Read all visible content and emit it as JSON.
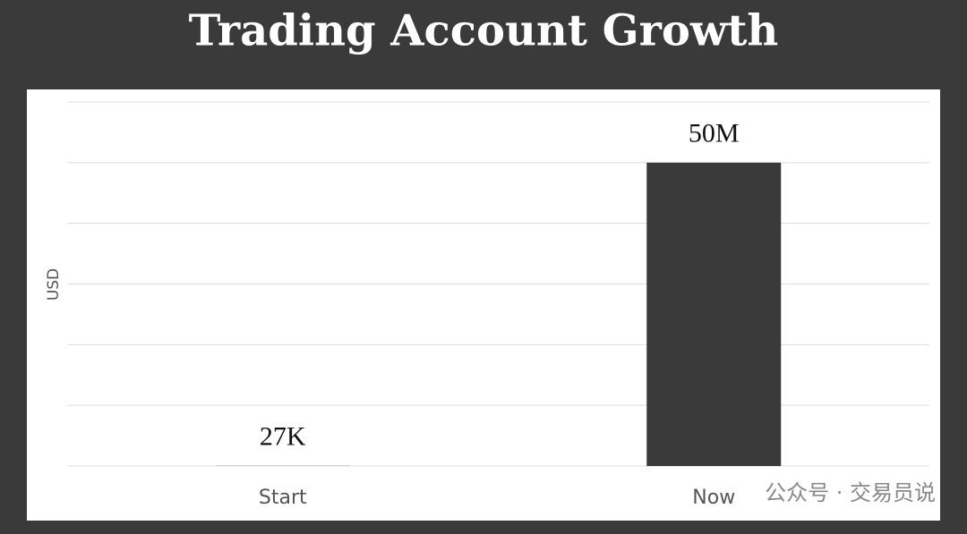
{
  "chart_data": {
    "type": "bar",
    "title": "Trading Account Growth",
    "y_label": "USD",
    "categories": [
      "Start",
      "Now"
    ],
    "values": [
      27000,
      50000000
    ],
    "value_labels": [
      "27K",
      "50M"
    ],
    "color": "#3a3a3a",
    "ylim": [
      0,
      60000000
    ],
    "yticks": [
      0,
      10000000,
      20000000,
      30000000,
      40000000,
      50000000,
      60000000
    ],
    "grid": true,
    "watermark": "公众号 · 交易员说"
  }
}
